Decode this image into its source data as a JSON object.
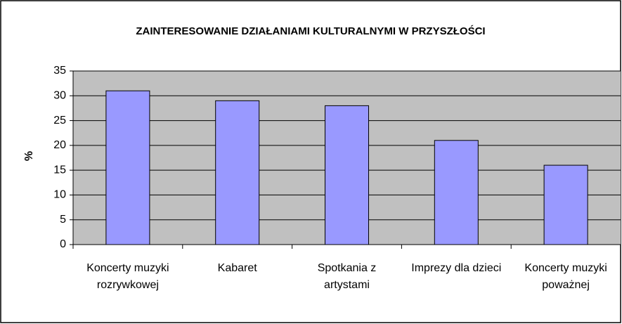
{
  "chart_data": {
    "type": "bar",
    "title": "ZAINTERESOWANIE DZIAŁANIAMI KULTURALNYMI W PRZYSZŁOŚCI",
    "y_label": "%",
    "categories": [
      "Koncerty muzyki rozrywkowej",
      "Kabaret",
      "Spotkania z artystami",
      "Imprezy dla dzieci",
      "Koncerty muzyki poważnej"
    ],
    "values": [
      31,
      29,
      28,
      21,
      16
    ],
    "color": "#9999ff",
    "ylim": [
      0,
      35
    ],
    "yticks": [
      0,
      5,
      10,
      15,
      20,
      25,
      30,
      35
    ],
    "grid": true
  }
}
